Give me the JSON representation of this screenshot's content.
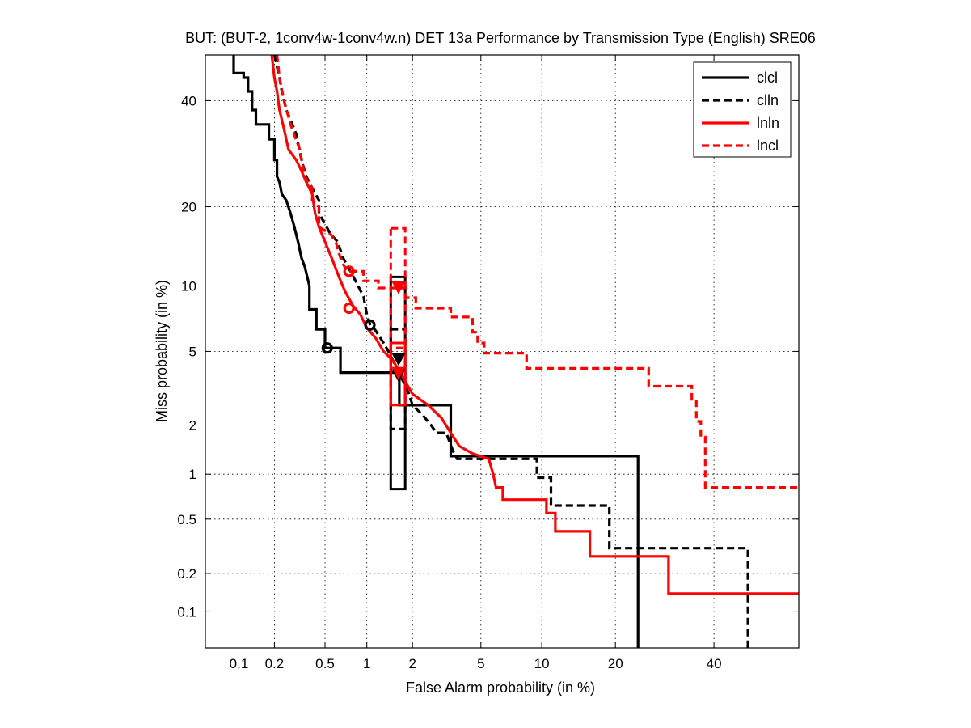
{
  "chart_data": {
    "type": "line",
    "title": "BUT: (BUT-2, 1conv4w-1conv4w.n) DET 13a Performance by Transmission Type (English) SRE06",
    "xlabel": "False Alarm probability (in %)",
    "ylabel": "Miss probability (in %)",
    "x_scale": "probit",
    "y_scale": "probit",
    "xlim": [
      0.05,
      60
    ],
    "ylim": [
      0.05,
      50
    ],
    "x_ticks": [
      0.1,
      0.2,
      0.5,
      1,
      2,
      5,
      10,
      20,
      40
    ],
    "x_tick_labels": [
      "0.1",
      "0.2",
      "0.5",
      "1",
      "2",
      "5",
      "10",
      "20",
      "40"
    ],
    "y_ticks": [
      0.1,
      0.2,
      0.5,
      1,
      2,
      5,
      10,
      20,
      40
    ],
    "y_tick_labels": [
      "0.1",
      "0.2",
      "0.5",
      "1",
      "2",
      "5",
      "10",
      "20",
      "40"
    ],
    "grid": true,
    "legend_position": "top-right",
    "series": [
      {
        "name": "clcl",
        "color": "#000000",
        "dash": "solid",
        "points": [
          [
            0.09,
            50
          ],
          [
            0.09,
            46
          ],
          [
            0.11,
            46
          ],
          [
            0.11,
            45
          ],
          [
            0.12,
            45
          ],
          [
            0.12,
            42
          ],
          [
            0.13,
            42
          ],
          [
            0.13,
            38
          ],
          [
            0.14,
            38
          ],
          [
            0.14,
            35
          ],
          [
            0.18,
            35
          ],
          [
            0.18,
            32
          ],
          [
            0.2,
            32
          ],
          [
            0.2,
            28
          ],
          [
            0.21,
            28
          ],
          [
            0.21,
            25
          ],
          [
            0.22,
            24
          ],
          [
            0.23,
            22
          ],
          [
            0.25,
            21
          ],
          [
            0.27,
            19
          ],
          [
            0.29,
            17
          ],
          [
            0.31,
            15
          ],
          [
            0.33,
            13
          ],
          [
            0.35,
            12
          ],
          [
            0.38,
            10
          ],
          [
            0.38,
            7.9
          ],
          [
            0.43,
            7.9
          ],
          [
            0.43,
            6.4
          ],
          [
            0.5,
            6.4
          ],
          [
            0.5,
            5.2
          ],
          [
            0.65,
            5.2
          ],
          [
            0.65,
            3.9
          ],
          [
            1.65,
            3.9
          ],
          [
            1.65,
            2.6
          ],
          [
            3.4,
            2.6
          ],
          [
            3.4,
            1.3
          ],
          [
            24,
            1.3
          ],
          [
            24,
            0.05
          ]
        ]
      },
      {
        "name": "clln",
        "color": "#000000",
        "dash": "dashed",
        "points": [
          [
            0.2,
            50
          ],
          [
            0.22,
            45
          ],
          [
            0.23,
            42
          ],
          [
            0.25,
            38
          ],
          [
            0.27,
            36
          ],
          [
            0.3,
            33
          ],
          [
            0.33,
            28
          ],
          [
            0.36,
            25
          ],
          [
            0.4,
            23
          ],
          [
            0.45,
            21
          ],
          [
            0.45,
            19
          ],
          [
            0.48,
            18
          ],
          [
            0.55,
            16
          ],
          [
            0.62,
            15
          ],
          [
            0.68,
            13
          ],
          [
            0.8,
            11
          ],
          [
            0.95,
            9
          ],
          [
            1.0,
            7.5
          ],
          [
            1.05,
            6.8
          ],
          [
            1.15,
            6.3
          ],
          [
            1.3,
            5.5
          ],
          [
            1.4,
            5.0
          ],
          [
            1.5,
            4.5
          ],
          [
            1.6,
            4.0
          ],
          [
            1.75,
            3.5
          ],
          [
            1.9,
            3.0
          ],
          [
            2.0,
            2.6
          ],
          [
            2.3,
            2.3
          ],
          [
            2.6,
            2.0
          ],
          [
            2.8,
            1.8
          ],
          [
            3.2,
            1.8
          ],
          [
            3.5,
            1.4
          ],
          [
            3.7,
            1.25
          ],
          [
            9.5,
            1.25
          ],
          [
            9.5,
            0.95
          ],
          [
            11,
            0.95
          ],
          [
            11,
            0.62
          ],
          [
            19,
            0.62
          ],
          [
            19,
            0.31
          ],
          [
            48,
            0.31
          ],
          [
            48,
            0.05
          ]
        ]
      },
      {
        "name": "lnln",
        "color": "#ff0000",
        "dash": "solid",
        "points": [
          [
            0.19,
            50
          ],
          [
            0.2,
            45
          ],
          [
            0.21,
            42
          ],
          [
            0.22,
            38
          ],
          [
            0.24,
            34
          ],
          [
            0.26,
            30
          ],
          [
            0.3,
            28
          ],
          [
            0.33,
            26
          ],
          [
            0.36,
            24
          ],
          [
            0.4,
            22
          ],
          [
            0.42,
            19
          ],
          [
            0.45,
            17
          ],
          [
            0.5,
            15
          ],
          [
            0.56,
            13
          ],
          [
            0.63,
            11
          ],
          [
            0.7,
            9.5
          ],
          [
            0.8,
            8.2
          ],
          [
            0.9,
            7.5
          ],
          [
            1.0,
            6.5
          ],
          [
            1.15,
            5.8
          ],
          [
            1.3,
            5.0
          ],
          [
            1.5,
            4.5
          ],
          [
            1.8,
            3.5
          ],
          [
            2.0,
            3.0
          ],
          [
            2.5,
            2.6
          ],
          [
            3.0,
            2.2
          ],
          [
            3.4,
            1.8
          ],
          [
            3.8,
            1.5
          ],
          [
            4.5,
            1.35
          ],
          [
            5.5,
            1.25
          ],
          [
            5.8,
            1.0
          ],
          [
            6.0,
            0.82
          ],
          [
            6.5,
            0.82
          ],
          [
            6.5,
            0.68
          ],
          [
            10.5,
            0.68
          ],
          [
            10.5,
            0.55
          ],
          [
            11.5,
            0.55
          ],
          [
            11.5,
            0.41
          ],
          [
            16,
            0.41
          ],
          [
            16,
            0.27
          ],
          [
            30,
            0.27
          ],
          [
            30,
            0.14
          ],
          [
            60,
            0.14
          ]
        ]
      },
      {
        "name": "lncl",
        "color": "#ff0000",
        "dash": "dashed",
        "points": [
          [
            0.21,
            50
          ],
          [
            0.22,
            45
          ],
          [
            0.24,
            40
          ],
          [
            0.27,
            35
          ],
          [
            0.32,
            30
          ],
          [
            0.35,
            25
          ],
          [
            0.4,
            23
          ],
          [
            0.4,
            21
          ],
          [
            0.45,
            20
          ],
          [
            0.45,
            17
          ],
          [
            0.55,
            16
          ],
          [
            0.6,
            15
          ],
          [
            0.65,
            13
          ],
          [
            0.72,
            11.5
          ],
          [
            0.95,
            11.5
          ],
          [
            0.95,
            10.5
          ],
          [
            1.2,
            10.5
          ],
          [
            1.2,
            9.8
          ],
          [
            1.8,
            9.8
          ],
          [
            1.8,
            8.9
          ],
          [
            2.1,
            8.9
          ],
          [
            2.1,
            8.0
          ],
          [
            3.4,
            8.0
          ],
          [
            3.4,
            7.3
          ],
          [
            4.5,
            7.3
          ],
          [
            4.5,
            6.2
          ],
          [
            4.8,
            6.2
          ],
          [
            4.8,
            5.5
          ],
          [
            5.2,
            5.5
          ],
          [
            5.2,
            4.9
          ],
          [
            8.5,
            4.9
          ],
          [
            8.5,
            4.1
          ],
          [
            26,
            4.1
          ],
          [
            26,
            3.3
          ],
          [
            35,
            3.3
          ],
          [
            35,
            2.8
          ],
          [
            36,
            2.8
          ],
          [
            36,
            2.1
          ],
          [
            37,
            2.1
          ],
          [
            37,
            1.7
          ],
          [
            38,
            1.7
          ],
          [
            38,
            0.82
          ],
          [
            60,
            0.82
          ]
        ]
      }
    ],
    "markers": [
      {
        "series": "clcl",
        "shape": "circle",
        "x": 0.52,
        "y": 5.2
      },
      {
        "series": "clcl",
        "shape": "triangle-down",
        "x": 1.63,
        "y": 3.8
      },
      {
        "series": "clln",
        "shape": "circle",
        "x": 1.05,
        "y": 6.7
      },
      {
        "series": "clln",
        "shape": "triangle-down",
        "x": 1.63,
        "y": 4.6
      },
      {
        "series": "lnln",
        "shape": "circle",
        "x": 0.75,
        "y": 8.0
      },
      {
        "series": "lnln",
        "shape": "triangle-down",
        "x": 1.63,
        "y": 3.9
      },
      {
        "series": "lncl",
        "shape": "circle",
        "x": 0.75,
        "y": 11.5
      },
      {
        "series": "lncl",
        "shape": "triangle-down",
        "x": 1.63,
        "y": 9.9
      }
    ],
    "confidence_boxes": [
      {
        "series": "clcl",
        "x_range": [
          1.45,
          1.8
        ],
        "y_range": [
          0.8,
          10.9
        ]
      },
      {
        "series": "clln",
        "x_range": [
          1.45,
          1.8
        ],
        "y_range": [
          1.9,
          6.4
        ]
      },
      {
        "series": "lnln",
        "x_range": [
          1.45,
          1.8
        ],
        "y_range": [
          2.6,
          5.5
        ]
      },
      {
        "series": "lncl",
        "x_range": [
          1.45,
          1.8
        ],
        "y_range": [
          5.2,
          16.8
        ]
      }
    ]
  }
}
